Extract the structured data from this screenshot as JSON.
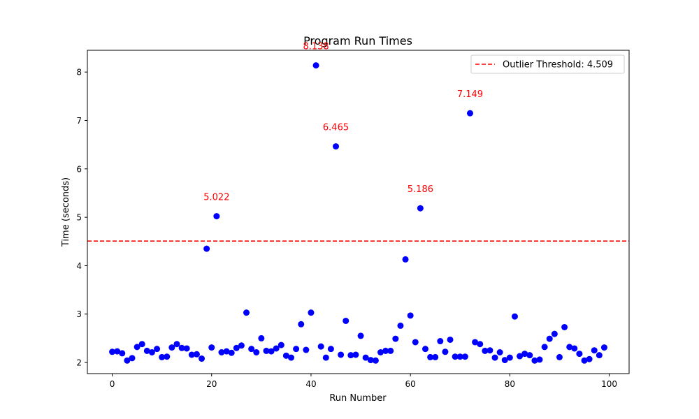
{
  "chart_data": {
    "type": "scatter",
    "title": "Program Run Times",
    "xlabel": "Run Number",
    "ylabel": "Time (seconds)",
    "xlim": [
      -5,
      104
    ],
    "ylim": [
      1.77,
      8.45
    ],
    "x_ticks": [
      0,
      20,
      40,
      60,
      80,
      100
    ],
    "y_ticks": [
      2,
      3,
      4,
      5,
      6,
      7,
      8
    ],
    "grid": false,
    "legend_position": "top-right",
    "point_color": "#0000ff",
    "threshold_color": "#ff0000",
    "annotation_color": "#ff0000",
    "threshold": {
      "value": 4.509,
      "label": "Outlier Threshold: 4.509"
    },
    "points": [
      {
        "x": 0,
        "y": 2.22
      },
      {
        "x": 1,
        "y": 2.23
      },
      {
        "x": 2,
        "y": 2.19
      },
      {
        "x": 3,
        "y": 2.04
      },
      {
        "x": 4,
        "y": 2.09
      },
      {
        "x": 5,
        "y": 2.32
      },
      {
        "x": 6,
        "y": 2.38
      },
      {
        "x": 7,
        "y": 2.24
      },
      {
        "x": 8,
        "y": 2.21
      },
      {
        "x": 9,
        "y": 2.28
      },
      {
        "x": 10,
        "y": 2.11
      },
      {
        "x": 11,
        "y": 2.12
      },
      {
        "x": 12,
        "y": 2.31
      },
      {
        "x": 13,
        "y": 2.38
      },
      {
        "x": 14,
        "y": 2.3
      },
      {
        "x": 15,
        "y": 2.29
      },
      {
        "x": 16,
        "y": 2.16
      },
      {
        "x": 17,
        "y": 2.17
      },
      {
        "x": 18,
        "y": 2.08
      },
      {
        "x": 19,
        "y": 4.35
      },
      {
        "x": 20,
        "y": 2.31
      },
      {
        "x": 21,
        "y": 5.022
      },
      {
        "x": 22,
        "y": 2.21
      },
      {
        "x": 23,
        "y": 2.23
      },
      {
        "x": 24,
        "y": 2.2
      },
      {
        "x": 25,
        "y": 2.3
      },
      {
        "x": 26,
        "y": 2.35
      },
      {
        "x": 27,
        "y": 3.03
      },
      {
        "x": 28,
        "y": 2.28
      },
      {
        "x": 29,
        "y": 2.21
      },
      {
        "x": 30,
        "y": 2.5
      },
      {
        "x": 31,
        "y": 2.24
      },
      {
        "x": 32,
        "y": 2.23
      },
      {
        "x": 33,
        "y": 2.29
      },
      {
        "x": 34,
        "y": 2.36
      },
      {
        "x": 35,
        "y": 2.14
      },
      {
        "x": 36,
        "y": 2.1
      },
      {
        "x": 37,
        "y": 2.28
      },
      {
        "x": 38,
        "y": 2.79
      },
      {
        "x": 39,
        "y": 2.26
      },
      {
        "x": 40,
        "y": 3.03
      },
      {
        "x": 41,
        "y": 8.138
      },
      {
        "x": 42,
        "y": 2.33
      },
      {
        "x": 43,
        "y": 2.1
      },
      {
        "x": 44,
        "y": 2.28
      },
      {
        "x": 45,
        "y": 6.465
      },
      {
        "x": 46,
        "y": 2.16
      },
      {
        "x": 47,
        "y": 2.86
      },
      {
        "x": 48,
        "y": 2.15
      },
      {
        "x": 49,
        "y": 2.16
      },
      {
        "x": 50,
        "y": 2.55
      },
      {
        "x": 51,
        "y": 2.1
      },
      {
        "x": 52,
        "y": 2.05
      },
      {
        "x": 53,
        "y": 2.04
      },
      {
        "x": 54,
        "y": 2.21
      },
      {
        "x": 55,
        "y": 2.24
      },
      {
        "x": 56,
        "y": 2.24
      },
      {
        "x": 57,
        "y": 2.49
      },
      {
        "x": 58,
        "y": 2.76
      },
      {
        "x": 59,
        "y": 4.13
      },
      {
        "x": 60,
        "y": 2.97
      },
      {
        "x": 61,
        "y": 2.42
      },
      {
        "x": 62,
        "y": 5.186
      },
      {
        "x": 63,
        "y": 2.28
      },
      {
        "x": 64,
        "y": 2.11
      },
      {
        "x": 65,
        "y": 2.11
      },
      {
        "x": 66,
        "y": 2.44
      },
      {
        "x": 67,
        "y": 2.22
      },
      {
        "x": 68,
        "y": 2.47
      },
      {
        "x": 69,
        "y": 2.12
      },
      {
        "x": 70,
        "y": 2.12
      },
      {
        "x": 71,
        "y": 2.12
      },
      {
        "x": 72,
        "y": 7.149
      },
      {
        "x": 73,
        "y": 2.42
      },
      {
        "x": 74,
        "y": 2.38
      },
      {
        "x": 75,
        "y": 2.24
      },
      {
        "x": 76,
        "y": 2.25
      },
      {
        "x": 77,
        "y": 2.1
      },
      {
        "x": 78,
        "y": 2.21
      },
      {
        "x": 79,
        "y": 2.05
      },
      {
        "x": 80,
        "y": 2.1
      },
      {
        "x": 81,
        "y": 2.95
      },
      {
        "x": 82,
        "y": 2.13
      },
      {
        "x": 83,
        "y": 2.18
      },
      {
        "x": 84,
        "y": 2.15
      },
      {
        "x": 85,
        "y": 2.04
      },
      {
        "x": 86,
        "y": 2.06
      },
      {
        "x": 87,
        "y": 2.32
      },
      {
        "x": 88,
        "y": 2.49
      },
      {
        "x": 89,
        "y": 2.59
      },
      {
        "x": 90,
        "y": 2.11
      },
      {
        "x": 91,
        "y": 2.73
      },
      {
        "x": 92,
        "y": 2.32
      },
      {
        "x": 93,
        "y": 2.29
      },
      {
        "x": 94,
        "y": 2.18
      },
      {
        "x": 95,
        "y": 2.04
      },
      {
        "x": 96,
        "y": 2.07
      },
      {
        "x": 97,
        "y": 2.25
      },
      {
        "x": 98,
        "y": 2.15
      },
      {
        "x": 99,
        "y": 2.31
      }
    ],
    "annotations": [
      {
        "x": 21,
        "y": 5.022,
        "text": "5.022"
      },
      {
        "x": 41,
        "y": 8.138,
        "text": "8.138"
      },
      {
        "x": 45,
        "y": 6.465,
        "text": "6.465"
      },
      {
        "x": 62,
        "y": 5.186,
        "text": "5.186"
      },
      {
        "x": 72,
        "y": 7.149,
        "text": "7.149"
      }
    ]
  }
}
